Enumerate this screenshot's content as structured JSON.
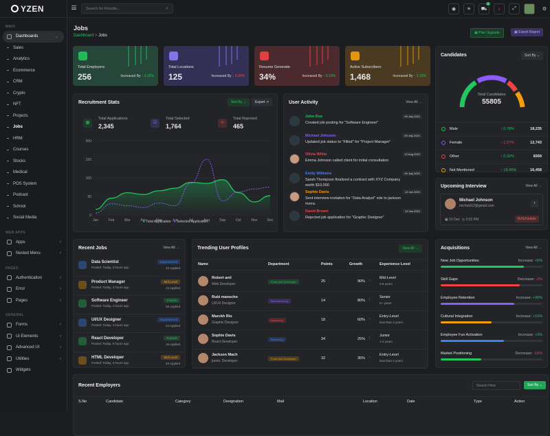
{
  "app": {
    "name": "YZEN"
  },
  "sidebar": {
    "main_label": "MAIN",
    "dashboards": "Dashboards",
    "items": [
      "Sales",
      "Analytics",
      "Ecommerce",
      "CRM",
      "Crypto",
      "NFT",
      "Projects",
      "Jobs",
      "HRM",
      "Courses",
      "Stocks",
      "Medical",
      "POS System",
      "Podcast",
      "School",
      "Social Media"
    ],
    "web_apps_label": "WEB APPS",
    "apps": "Apps",
    "nested": "Nested Menu",
    "pages_label": "PAGES",
    "auth": "Authentication",
    "error": "Error",
    "pages": "Pages",
    "general_label": "GENERAL",
    "forms": "Forms",
    "ui": "Ui Elements",
    "adv": "Advanced UI",
    "util": "Utilities",
    "widgets": "Widgets"
  },
  "header": {
    "search_placeholder": "Search for Results...",
    "cart_badge": "3"
  },
  "page": {
    "title": "Jobs",
    "crumb_home": "Dashboard",
    "crumb_sep": ">",
    "crumb_cur": "Jobs",
    "plan_btn": "Plan Upgrade",
    "export_btn": "Export Report"
  },
  "stats": [
    {
      "label": "Total Employers",
      "value": "256",
      "inc_text": "Increased By",
      "inc": "↑ 3.32%",
      "bg": "#27463a",
      "color": "#22c55e"
    },
    {
      "label": "Total Locations",
      "value": "125",
      "inc_text": "Increased By",
      "inc": "↓ 0.90%",
      "bg": "#343055",
      "color": "#8b7cf6"
    },
    {
      "label": "Resume Generate",
      "value": "34%",
      "inc_text": "Increased By",
      "inc": "↑ 0.10%",
      "bg": "#4a2a2c",
      "color": "#ef4444"
    },
    {
      "label": "Active Subscribers",
      "value": "1,468",
      "inc_text": "Increased By",
      "inc": "↑ 3.32%",
      "bg": "#4a3a22",
      "color": "#f59e0b"
    }
  ],
  "candidates": {
    "title": "Candidates",
    "sort": "Sort By",
    "total_label": "Total Candidates",
    "total": "55805",
    "rows": [
      {
        "name": "Male",
        "pct": "↑ 0.78%",
        "val": "18,235",
        "color": "#22c55e"
      },
      {
        "name": "Female",
        "pct": "↓ 1.57%",
        "val": "12,743",
        "color": "#8b5cf6"
      },
      {
        "name": "Other",
        "pct": "↑ 0.32%",
        "val": "8369",
        "color": "#ef4444"
      },
      {
        "name": "Not Mentioned",
        "pct": "↑ 19.45%",
        "val": "16,458",
        "color": "#f59e0b"
      }
    ]
  },
  "recruit": {
    "title": "Recruitment Stats",
    "sort": "Sort By",
    "export": "Export",
    "apps_label": "Total Applications",
    "apps": "2,345",
    "sel_label": "Total Selected",
    "sel": "1,764",
    "rej_label": "Total Rejected",
    "rej": "465",
    "legend1": "Total Application",
    "legend2": "Selected Application"
  },
  "chart_data": {
    "type": "line",
    "categories": [
      "Jan",
      "Feb",
      "Mar",
      "Apr",
      "May",
      "Jun",
      "Jul",
      "Aug",
      "Sep",
      "Oct",
      "Nov",
      "Dec"
    ],
    "ylim": [
      0,
      200
    ],
    "yticks": [
      "0",
      "50",
      "100",
      "150",
      "200"
    ],
    "series": [
      {
        "name": "Total Application",
        "values": [
          15,
          45,
          60,
          55,
          65,
          72,
          88,
          85,
          95,
          60,
          35,
          52
        ]
      },
      {
        "name": "Selected Application",
        "values": [
          5,
          30,
          25,
          20,
          32,
          25,
          85,
          150,
          38,
          62,
          70,
          75
        ]
      }
    ]
  },
  "activity": {
    "title": "User Activity",
    "view": "View All",
    "items": [
      {
        "name": "John Doe",
        "text": "Created job posting for \"Software Engineer\"",
        "date": "09 July 2021",
        "color": "#22c55e"
      },
      {
        "name": "Michael Johnson",
        "text": "Updated job status to \"Filled\" for \"Project Manager\"",
        "date": "09 July 2021",
        "color": "#8b5cf6"
      },
      {
        "name": "Olivia White",
        "text": "Emma Johnson called client for initial consultation",
        "date": "12 Aug 2022",
        "color": "#ef4444"
      },
      {
        "name": "Emily Williams",
        "text": "Sarah Thompson finalized a contract with XYZ Company worth $10,000",
        "date": "09 July 2021",
        "color": "#3b82f6"
      },
      {
        "name": "Sophie Davis",
        "text": "Sent interview invitation for \"Data Analyst\" role to jackson rivera.",
        "date": "12 Jan 2021",
        "color": "#f59e0b"
      },
      {
        "name": "David Brown",
        "text": "Rejected job application for \"Graphic Designer\"",
        "date": "12 Jan 2021",
        "color": "#ef4444"
      }
    ]
  },
  "interview": {
    "title": "Upcoming Interview",
    "view": "View All",
    "name": "Michael Johnson",
    "email": "michael12@gmail.com",
    "date": "10 Dec",
    "time": "2:32 PM",
    "btn": "ReSchedule"
  },
  "recent": {
    "title": "Recent Jobs",
    "view": "View All",
    "items": [
      {
        "title": "Data Scientist",
        "posted": "Posted: Today, 2 hours ago",
        "tag": "Experienced",
        "count": "23 Applied",
        "tcolor": "#3b82f6"
      },
      {
        "title": "Product Manager",
        "posted": "Posted: Today, 3 hours ago",
        "tag": "Mid-Level",
        "count": "12 Applied",
        "tcolor": "#f59e0b"
      },
      {
        "title": "Software Engineer",
        "posted": "Posted: Today, 4 hours ago",
        "tag": "Fresher",
        "count": "36 Applied",
        "tcolor": "#22c55e"
      },
      {
        "title": "UI/UX Designer",
        "posted": "Posted: Today, 4 hours ago",
        "tag": "Experienced",
        "count": "24 Applied",
        "tcolor": "#3b82f6"
      },
      {
        "title": "React Developer",
        "posted": "Posted: Today, 5 hours ago",
        "tag": "Fresher",
        "count": "16 Applied",
        "tcolor": "#22c55e"
      },
      {
        "title": "HTML Developer",
        "posted": "Posted: Today, 6 hours ago",
        "tag": "Mid-Level",
        "count": "20 Applied",
        "tcolor": "#f59e0b"
      }
    ]
  },
  "trending": {
    "title": "Trending User Profiles",
    "view": "View All",
    "headers": [
      "Name",
      "Department",
      "Points",
      "Growth",
      "Experience Level"
    ],
    "rows": [
      {
        "name": "Robert anii",
        "role": "Web Developer",
        "dept": "Front-end Developer",
        "dc": "#22c55e",
        "points": "25",
        "growth": "90%",
        "up": true,
        "lvl": "Mid-Level",
        "yrs": "3-5 years"
      },
      {
        "name": "Rubi manscho",
        "role": "UI/UX Designer",
        "dept": "Manufacturing",
        "dc": "#8b5cf6",
        "points": "14",
        "growth": "80%",
        "up": true,
        "lvl": "Senior",
        "yrs": "5+ years"
      },
      {
        "name": "Marckh Rio",
        "role": "Graphic Designer",
        "dept": "Marketing",
        "dc": "#ef4444",
        "points": "18",
        "growth": "60%",
        "up": true,
        "lvl": "Entry-Level",
        "yrs": "less than 2 years"
      },
      {
        "name": "Sophie Davis",
        "role": "React Developer",
        "dept": "Marketing",
        "dc": "#3b82f6",
        "points": "34",
        "growth": "25%",
        "up": true,
        "lvl": "Junior",
        "yrs": "1-3 years"
      },
      {
        "name": "Jackson Mach",
        "role": "junior. Developer",
        "dept": "Front-end Developer",
        "dc": "#f59e0b",
        "points": "32",
        "growth": "35%",
        "up": true,
        "lvl": "Entry-Level",
        "yrs": "less than 2 years"
      }
    ]
  },
  "acq": {
    "title": "Acquisitions",
    "view": "View All",
    "items": [
      {
        "name": "New Job Opportunities",
        "lbl": "Increase:",
        "val": "+5%",
        "pct": 0.82,
        "color": "#22c55e",
        "vc": "#22c55e"
      },
      {
        "name": "Skill Gaps",
        "lbl": "Decrease:",
        "val": "-2%",
        "pct": 0.78,
        "color": "#ef4444",
        "vc": "#ef4444"
      },
      {
        "name": "Employee Retention",
        "lbl": "Increase:",
        "val": "+30%",
        "pct": 0.72,
        "color": "#8b5cf6",
        "vc": "#22c55e"
      },
      {
        "name": "Cultural Integration",
        "lbl": "Increase:",
        "val": "+15%",
        "pct": 0.5,
        "color": "#f59e0b",
        "vc": "#22c55e"
      },
      {
        "name": "Employee Fun Activation",
        "lbl": "Increase:",
        "val": "+3%",
        "pct": 0.62,
        "color": "#3b82f6",
        "vc": "#22c55e"
      },
      {
        "name": "Market Positioning",
        "lbl": "Decrease:",
        "val": "-16%",
        "pct": 0.4,
        "color": "#22c55e",
        "vc": "#ef4444"
      }
    ]
  },
  "employers": {
    "title": "Recent Employers",
    "search": "Search Here",
    "sort": "Sort By",
    "headers": [
      "S.No",
      "Candidate",
      "Category",
      "Designation",
      "Mail",
      "Location",
      "Date",
      "Type",
      "Action"
    ]
  }
}
